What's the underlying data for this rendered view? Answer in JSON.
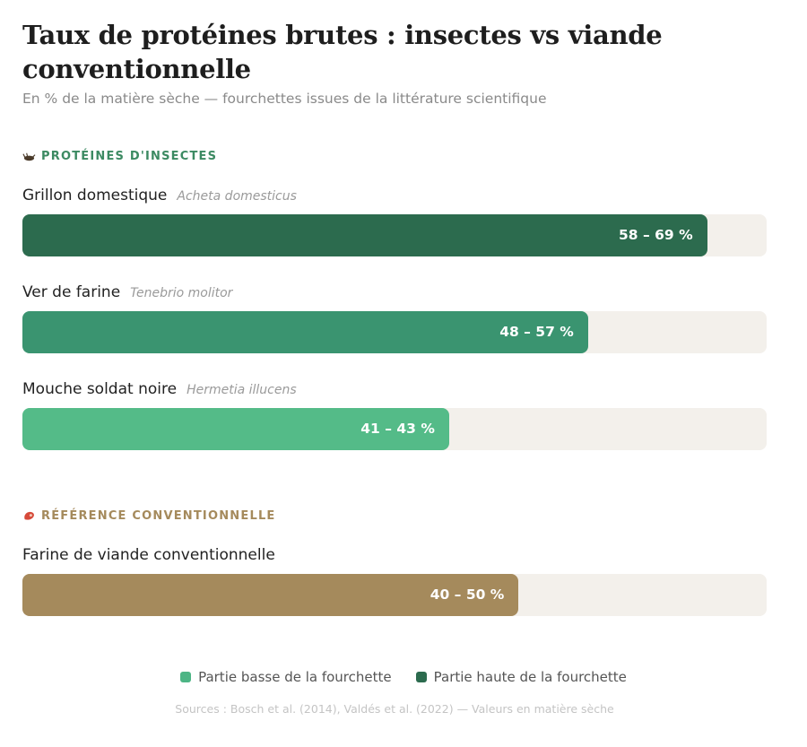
{
  "title": "Taux de protéines brutes : insectes vs viande conventionnelle",
  "subtitle": "En % de la matière sèche — fourchettes issues de la littérature scientifique",
  "sections": [
    {
      "label": "PROTÉINES D'INSECTES",
      "color": "#3c8a62",
      "icon": "cricket-icon"
    },
    {
      "label": "RÉFÉRENCE CONVENTIONNELLE",
      "color": "#a58a5c",
      "icon": "meat-icon"
    }
  ],
  "chart_data": {
    "type": "bar",
    "orientation": "horizontal",
    "unit": "% de la matière sèche",
    "xlim": [
      0,
      75
    ],
    "categories": [
      "Grillon domestique",
      "Ver de farine",
      "Mouche soldat noire",
      "Farine de viande conventionnelle"
    ],
    "scientific_names": [
      "Acheta domesticus",
      "Tenebrio molitor",
      "Hermetia illucens",
      ""
    ],
    "groups": [
      "PROTÉINES D'INSECTES",
      "PROTÉINES D'INSECTES",
      "PROTÉINES D'INSECTES",
      "RÉFÉRENCE CONVENTIONNELLE"
    ],
    "low": [
      58,
      48,
      41,
      40
    ],
    "high": [
      69,
      57,
      43,
      50
    ],
    "value_labels": [
      "58 – 69 %",
      "48 – 57 %",
      "41 – 43 %",
      "40 – 50 %"
    ],
    "colors": [
      "#2c6b4e",
      "#3a9470",
      "#54bb88",
      "#a58a5c"
    ],
    "legend": [
      {
        "label": "Partie basse de la fourchette",
        "color": "#4db585"
      },
      {
        "label": "Partie haute de la fourchette",
        "color": "#2c6b4e"
      }
    ],
    "legend_position": "bottom-center"
  },
  "sources": "Sources : Bosch et al. (2014), Valdés et al. (2022) — Valeurs en matière sèche"
}
